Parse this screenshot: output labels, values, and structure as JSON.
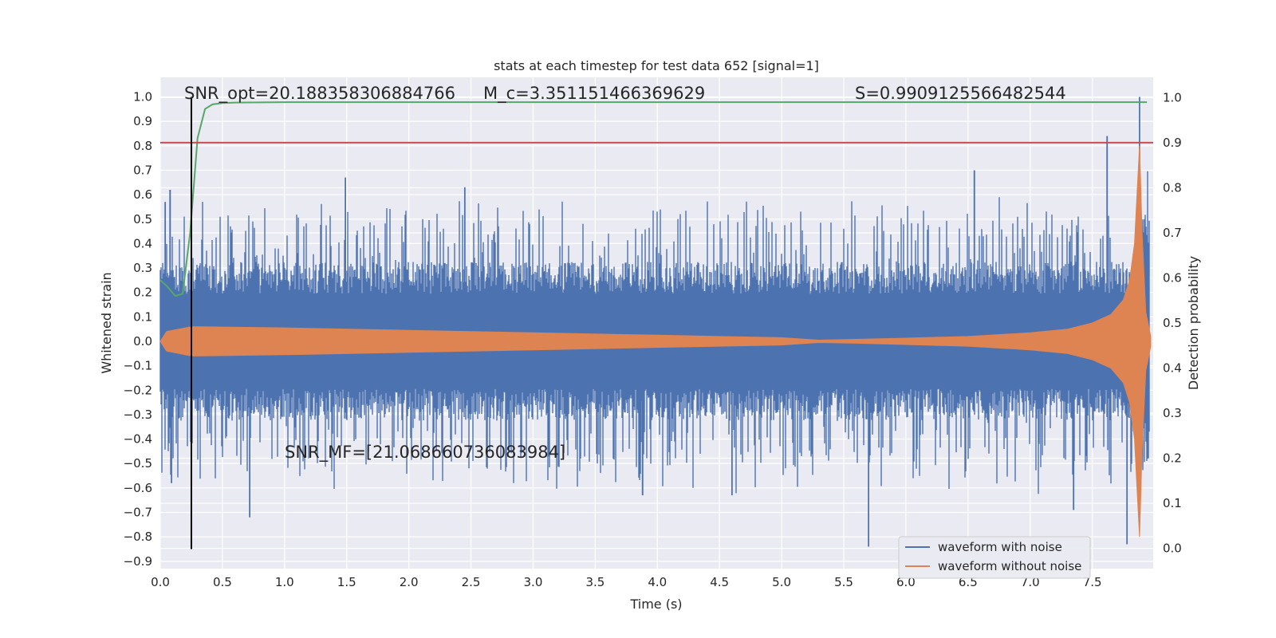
{
  "chart_data": {
    "type": "line",
    "title": "stats at each timestep for test data 652 [signal=1]",
    "xlabel": "Time (s)",
    "ylabel": "Whitened strain",
    "ylabel_right": "Detection probability",
    "xlim": [
      0.0,
      7.99
    ],
    "ylim": [
      -0.93,
      1.08
    ],
    "ylim_right": [
      -0.045,
      1.045
    ],
    "x_ticks": [
      "0.0",
      "0.5",
      "1.0",
      "1.5",
      "2.0",
      "2.5",
      "3.0",
      "3.5",
      "4.0",
      "4.5",
      "5.0",
      "5.5",
      "6.0",
      "6.5",
      "7.0",
      "7.5"
    ],
    "y_ticks": [
      "1.0",
      "0.9",
      "0.8",
      "0.7",
      "0.6",
      "0.5",
      "0.4",
      "0.3",
      "0.2",
      "0.1",
      "0.0",
      "−0.1",
      "−0.2",
      "−0.3",
      "−0.4",
      "−0.5",
      "−0.6",
      "−0.7",
      "−0.8",
      "−0.9"
    ],
    "y_ticks_right": [
      "1.0",
      "0.9",
      "0.8",
      "0.7",
      "0.6",
      "0.5",
      "0.4",
      "0.3",
      "0.2",
      "0.1",
      "0.0"
    ],
    "grid": true,
    "legend_position": "lower-right",
    "series": [
      {
        "name": "waveform with noise",
        "color": "#4c72b0",
        "axis": "left",
        "spikes": [
          {
            "x": 0.04,
            "y": 0.57
          },
          {
            "x": 0.09,
            "y": -0.58
          },
          {
            "x": 0.08,
            "y": 0.62
          },
          {
            "x": 1.49,
            "y": 0.67
          },
          {
            "x": 2.45,
            "y": 0.63
          },
          {
            "x": 6.55,
            "y": 0.7
          },
          {
            "x": 7.62,
            "y": 0.84
          },
          {
            "x": 7.88,
            "y": 1.0
          },
          {
            "x": 5.7,
            "y": -0.84
          },
          {
            "x": 7.78,
            "y": -0.83
          },
          {
            "x": 0.72,
            "y": -0.72
          },
          {
            "x": 3.88,
            "y": -0.63
          },
          {
            "x": 4.6,
            "y": -0.63
          },
          {
            "x": 7.35,
            "y": -0.69
          }
        ]
      },
      {
        "name": "waveform without noise",
        "color": "#dd8452",
        "axis": "left",
        "envelope": [
          {
            "x": 0.0,
            "y": 0.0
          },
          {
            "x": 0.05,
            "y": 0.04
          },
          {
            "x": 0.25,
            "y": 0.06
          },
          {
            "x": 1.0,
            "y": 0.055
          },
          {
            "x": 2.0,
            "y": 0.045
          },
          {
            "x": 3.0,
            "y": 0.035
          },
          {
            "x": 4.0,
            "y": 0.025
          },
          {
            "x": 5.0,
            "y": 0.015
          },
          {
            "x": 5.3,
            "y": 0.005
          },
          {
            "x": 5.6,
            "y": 0.008
          },
          {
            "x": 6.0,
            "y": 0.013
          },
          {
            "x": 6.5,
            "y": 0.02
          },
          {
            "x": 7.0,
            "y": 0.035
          },
          {
            "x": 7.3,
            "y": 0.05
          },
          {
            "x": 7.5,
            "y": 0.075
          },
          {
            "x": 7.65,
            "y": 0.11
          },
          {
            "x": 7.75,
            "y": 0.17
          },
          {
            "x": 7.8,
            "y": 0.25
          },
          {
            "x": 7.84,
            "y": 0.4
          },
          {
            "x": 7.86,
            "y": 0.6
          },
          {
            "x": 7.88,
            "y": 0.8
          },
          {
            "x": 7.9,
            "y": 0.45
          },
          {
            "x": 7.93,
            "y": 0.12
          },
          {
            "x": 7.97,
            "y": 0.02
          }
        ]
      },
      {
        "color": "#55a868",
        "axis": "right",
        "x": [
          0.0,
          0.06,
          0.12,
          0.18,
          0.24,
          0.3,
          0.36,
          0.42,
          0.5,
          0.6,
          1.0,
          2.0,
          4.0,
          6.0,
          7.5,
          7.94
        ],
        "values": [
          0.595,
          0.58,
          0.56,
          0.565,
          0.7,
          0.91,
          0.975,
          0.985,
          0.988,
          0.989,
          0.99,
          0.99,
          0.99,
          0.99,
          0.99,
          0.99
        ]
      },
      {
        "color": "#c44e52",
        "axis": "right",
        "x": [
          0.0,
          7.99
        ],
        "values": [
          0.9,
          0.9
        ]
      }
    ],
    "vertical_line": {
      "x": 0.25,
      "color": "#000000"
    },
    "annotations": {
      "snr_opt": "SNR_opt=20.188358306884766",
      "mc": "M_c=3.351151466369629",
      "s": "S=0.9909125566482544",
      "snr_mf": "SNR_MF=[21.068660736083984]"
    },
    "colors": {
      "background": "#eaeaf2",
      "grid": "#ffffff"
    }
  }
}
